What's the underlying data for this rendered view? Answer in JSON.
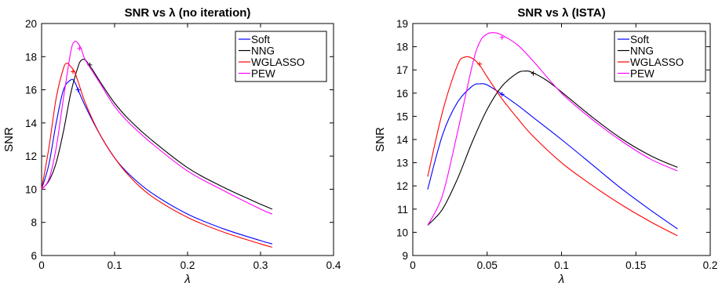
{
  "colors": {
    "Soft": "#0000ff",
    "NNG": "#000000",
    "WGLASSO": "#ff0000",
    "PEW": "#ff00ff"
  },
  "chart_data": [
    {
      "type": "line",
      "title": "SNR vs λ (no iteration)",
      "xlabel": "λ",
      "ylabel": "SNR",
      "xlim": [
        0,
        0.4
      ],
      "ylim": [
        6,
        20
      ],
      "xticks": [
        0,
        0.1,
        0.2,
        0.3,
        0.4
      ],
      "xtick_labels": [
        "0",
        "0.1",
        "0.2",
        "0.3",
        "0.4"
      ],
      "yticks": [
        6,
        8,
        10,
        12,
        14,
        16,
        18,
        20
      ],
      "ytick_labels": [
        "6",
        "8",
        "10",
        "12",
        "14",
        "16",
        "18",
        "20"
      ],
      "legend": "top-right",
      "grid": false,
      "series": [
        {
          "name": "Soft",
          "x": [
            0.0,
            0.01,
            0.02,
            0.03,
            0.04,
            0.045,
            0.05,
            0.06,
            0.08,
            0.1,
            0.12,
            0.15,
            0.2,
            0.25,
            0.3,
            0.316
          ],
          "values": [
            10.0,
            11.5,
            14.0,
            16.0,
            16.6,
            16.5,
            16.0,
            15.0,
            13.3,
            11.9,
            10.9,
            9.8,
            8.5,
            7.6,
            6.9,
            6.7
          ],
          "markers": [
            [
              0.05,
              16.0
            ]
          ]
        },
        {
          "name": "NNG",
          "x": [
            0.0,
            0.01,
            0.02,
            0.03,
            0.04,
            0.05,
            0.055,
            0.06,
            0.065,
            0.07,
            0.08,
            0.1,
            0.12,
            0.15,
            0.2,
            0.25,
            0.3,
            0.316
          ],
          "values": [
            10.0,
            10.5,
            11.6,
            13.5,
            15.8,
            17.4,
            17.8,
            17.8,
            17.5,
            17.2,
            16.5,
            15.2,
            14.2,
            13.0,
            11.3,
            10.1,
            9.1,
            8.8
          ],
          "markers": [
            [
              0.066,
              17.5
            ]
          ]
        },
        {
          "name": "WGLASSO",
          "x": [
            0.0,
            0.01,
            0.02,
            0.03,
            0.035,
            0.04,
            0.045,
            0.05,
            0.06,
            0.08,
            0.1,
            0.12,
            0.15,
            0.2,
            0.25,
            0.3,
            0.316
          ],
          "values": [
            10.0,
            12.5,
            15.5,
            17.3,
            17.6,
            17.4,
            17.1,
            16.5,
            15.2,
            13.3,
            11.9,
            10.8,
            9.6,
            8.3,
            7.4,
            6.7,
            6.5
          ],
          "markers": [
            [
              0.043,
              17.1
            ]
          ]
        },
        {
          "name": "PEW",
          "x": [
            0.0,
            0.01,
            0.02,
            0.03,
            0.04,
            0.045,
            0.05,
            0.055,
            0.06,
            0.08,
            0.1,
            0.12,
            0.15,
            0.2,
            0.25,
            0.3,
            0.316
          ],
          "values": [
            10.0,
            10.6,
            12.5,
            15.5,
            18.3,
            18.9,
            18.8,
            18.4,
            17.8,
            16.4,
            15.0,
            14.0,
            12.8,
            11.1,
            9.9,
            8.8,
            8.5
          ],
          "markers": [
            [
              0.052,
              18.5
            ]
          ]
        }
      ]
    },
    {
      "type": "line",
      "title": "SNR vs λ (ISTA)",
      "xlabel": "λ",
      "ylabel": "SNR",
      "xlim": [
        0,
        0.2
      ],
      "ylim": [
        9,
        19
      ],
      "xticks": [
        0,
        0.05,
        0.1,
        0.15,
        0.2
      ],
      "xtick_labels": [
        "0",
        "0.05",
        "0.1",
        "0.15",
        "0.2"
      ],
      "yticks": [
        9,
        10,
        11,
        12,
        13,
        14,
        15,
        16,
        17,
        18,
        19
      ],
      "ytick_labels": [
        "9",
        "10",
        "11",
        "12",
        "13",
        "14",
        "15",
        "16",
        "17",
        "18",
        "19"
      ],
      "legend": "top-right",
      "grid": false,
      "series": [
        {
          "name": "Soft",
          "x": [
            0.01,
            0.02,
            0.03,
            0.04,
            0.045,
            0.05,
            0.06,
            0.07,
            0.08,
            0.1,
            0.12,
            0.14,
            0.16,
            0.178
          ],
          "values": [
            11.85,
            14.2,
            15.6,
            16.3,
            16.4,
            16.35,
            15.95,
            15.5,
            15.0,
            14.0,
            12.95,
            11.9,
            10.95,
            10.15
          ],
          "markers": [
            [
              0.06,
              15.95
            ]
          ]
        },
        {
          "name": "NNG",
          "x": [
            0.01,
            0.02,
            0.03,
            0.04,
            0.05,
            0.06,
            0.07,
            0.075,
            0.08,
            0.09,
            0.1,
            0.12,
            0.14,
            0.16,
            0.178
          ],
          "values": [
            10.3,
            11.0,
            12.3,
            13.9,
            15.3,
            16.3,
            16.85,
            16.95,
            16.9,
            16.55,
            16.05,
            15.0,
            14.05,
            13.3,
            12.8
          ],
          "markers": [
            [
              0.081,
              16.85
            ]
          ]
        },
        {
          "name": "WGLASSO",
          "x": [
            0.01,
            0.02,
            0.03,
            0.035,
            0.04,
            0.045,
            0.05,
            0.06,
            0.07,
            0.08,
            0.1,
            0.12,
            0.14,
            0.16,
            0.178
          ],
          "values": [
            12.4,
            15.2,
            17.2,
            17.55,
            17.5,
            17.2,
            16.7,
            15.75,
            14.95,
            14.2,
            13.0,
            12.05,
            11.2,
            10.45,
            9.85
          ],
          "markers": [
            [
              0.045,
              17.25
            ]
          ]
        },
        {
          "name": "PEW",
          "x": [
            0.01,
            0.02,
            0.03,
            0.04,
            0.045,
            0.05,
            0.055,
            0.06,
            0.07,
            0.08,
            0.1,
            0.12,
            0.14,
            0.16,
            0.178
          ],
          "values": [
            10.3,
            11.6,
            14.3,
            17.2,
            18.2,
            18.55,
            18.6,
            18.5,
            18.1,
            17.45,
            16.0,
            14.9,
            13.95,
            13.15,
            12.65
          ],
          "markers": [
            [
              0.06,
              18.4
            ]
          ]
        }
      ]
    }
  ]
}
